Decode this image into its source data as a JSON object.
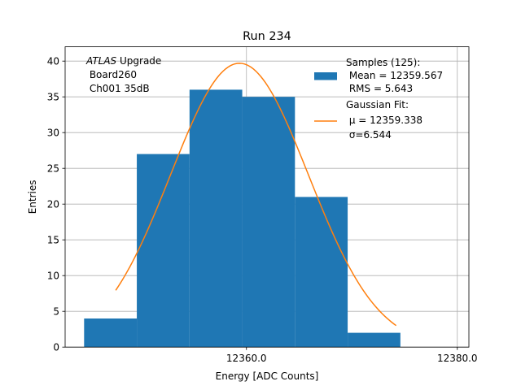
{
  "chart_data": {
    "type": "bar",
    "title": "Run 234",
    "xlabel": "Energy [ADC Counts]",
    "ylabel": "Entries",
    "xlim": [
      12342.8,
      12381.1
    ],
    "ylim": [
      0,
      42
    ],
    "grid": true,
    "x_ticks": [
      12360.0,
      12380.0
    ],
    "x_tick_labels": [
      "12360.0",
      "12380.0"
    ],
    "y_ticks": [
      0,
      5,
      10,
      15,
      20,
      25,
      30,
      35,
      40
    ],
    "y_tick_labels": [
      "0",
      "5",
      "10",
      "15",
      "20",
      "25",
      "30",
      "35",
      "40"
    ],
    "histogram": {
      "name": "Samples (125):",
      "color": "#1f77b4",
      "bins": [
        {
          "x0": 12344.6,
          "x1": 12349.6,
          "value": 4
        },
        {
          "x0": 12349.6,
          "x1": 12354.6,
          "value": 27
        },
        {
          "x0": 12354.6,
          "x1": 12359.6,
          "value": 36
        },
        {
          "x0": 12359.6,
          "x1": 12364.6,
          "value": 35
        },
        {
          "x0": 12364.6,
          "x1": 12369.6,
          "value": 21
        },
        {
          "x0": 12369.6,
          "x1": 12374.6,
          "value": 2
        }
      ]
    },
    "fit": {
      "name": "Gaussian Fit:",
      "color": "#ff7f0e",
      "mu": 12359.338,
      "sigma": 6.544,
      "amplitude": 39.7,
      "x_range": [
        12347.6,
        12374.2
      ]
    },
    "legend": {
      "placement": "upper-right",
      "samples_lines": [
        "Samples (125):",
        " Mean = 12359.567",
        " RMS = 5.643"
      ],
      "fit_lines": [
        "Gaussian Fit:",
        " μ = 12359.338",
        " σ=6.544"
      ]
    },
    "annotation": {
      "lines": [
        {
          "italic": "ATLAS",
          "rest": " Upgrade"
        },
        {
          "italic": "",
          "rest": " Board260"
        },
        {
          "italic": "",
          "rest": " Ch001 35dB"
        }
      ]
    }
  }
}
